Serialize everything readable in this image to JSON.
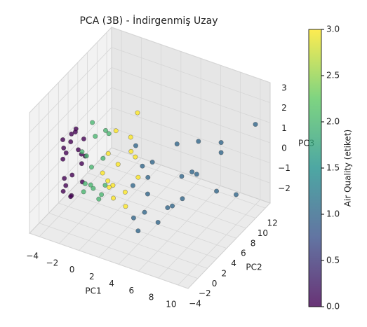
{
  "chart_data": {
    "type": "scatter3d",
    "title": "PCA (3B) - İndirgenmiş Uzay",
    "xlabel": "PC1",
    "ylabel": "PC2",
    "zlabel": "PC3",
    "xlim": [
      -5,
      11
    ],
    "ylim": [
      -4,
      13
    ],
    "zlim": [
      -3,
      3
    ],
    "xticks": [
      {
        "value": -4,
        "label": "−4"
      },
      {
        "value": -2,
        "label": "−2"
      },
      0,
      2,
      4,
      6,
      8,
      10
    ],
    "yticks": [
      {
        "value": -4,
        "label": "−4"
      },
      {
        "value": -2,
        "label": "−2"
      },
      0,
      2,
      4,
      6,
      8,
      10,
      12
    ],
    "zticks": [
      {
        "value": -2,
        "label": "−2"
      },
      {
        "value": -1,
        "label": "−1"
      },
      0,
      1,
      2,
      3
    ],
    "grid": true,
    "cmap": "viridis",
    "colorbar": {
      "label": "Air Quality (etiket)",
      "clim": [
        0,
        3
      ],
      "ticks": [
        {
          "value": 0,
          "label": "0.0"
        },
        {
          "value": 0.5,
          "label": "0.5"
        },
        {
          "value": 1,
          "label": "1.0"
        },
        {
          "value": 1.5,
          "label": "1.5"
        },
        {
          "value": 2,
          "label": "2.0"
        },
        {
          "value": 2.5,
          "label": "2.5"
        },
        {
          "value": 3,
          "label": "3.0"
        }
      ]
    },
    "points": {
      "x": [
        -3.5,
        -3.2,
        -2.8,
        -3.0,
        -2.5,
        -3.3,
        -2.2,
        -2.7,
        -3.1,
        -2.4,
        -2.9,
        -3.4,
        -2.6,
        -2.1,
        -3.0,
        -2.3,
        -2.8,
        -3.2,
        -2.5,
        -2.0,
        -1.2,
        -0.8,
        -1.0,
        -0.5,
        -0.2,
        -1.4,
        -0.6,
        0.0,
        -0.9,
        -0.3,
        0.3,
        -1.1,
        -0.4,
        0.2,
        -0.7,
        1.0,
        1.5,
        2.0,
        0.8,
        2.5,
        1.2,
        3.0,
        1.8,
        2.2,
        0.6,
        2.8,
        1.4,
        3.3,
        2.0,
        1.0,
        3,
        4,
        5,
        3.5,
        6,
        4.5,
        5.5,
        7,
        3.2,
        6.5,
        4.2,
        5,
        7.5,
        3.8,
        6.2,
        8,
        4.8,
        5.8,
        2.8,
        9,
        10,
        10,
        8
      ],
      "y": [
        0,
        1,
        -1,
        2,
        0.5,
        -0.5,
        1.5,
        -1.5,
        0.8,
        -0.8,
        2.5,
        0.3,
        -2,
        1,
        -1.2,
        2,
        0,
        1.8,
        -0.3,
        0.6,
        0,
        1,
        -1,
        2,
        0.5,
        -0.5,
        -1.5,
        1.5,
        2.5,
        -0.8,
        0.8,
        1.2,
        3,
        -2,
        0.2,
        0,
        1,
        -1,
        2,
        0.5,
        -0.5,
        1.5,
        3,
        -1.5,
        1,
        2.5,
        -2,
        0,
        4,
        3.5,
        1,
        2,
        0,
        4,
        3,
        -1,
        5,
        6,
        3,
        1,
        0.5,
        7,
        4,
        -0.5,
        8,
        9,
        2.5,
        5.5,
        2,
        6,
        8,
        12,
        9
      ],
      "z": [
        0.5,
        1,
        -1,
        0,
        1.5,
        -1.5,
        0.8,
        -0.5,
        -2,
        1.2,
        -0.8,
        0.2,
        0.6,
        -1.2,
        1.3,
        -0.2,
        -1.8,
        0.9,
        -0.6,
        0.3,
        0.5,
        1.3,
        -1,
        0,
        -1.6,
        0.8,
        -0.4,
        1.6,
        -2,
        0.3,
        -0.9,
        -1.4,
        1.0,
        -0.2,
        2.2,
        1,
        0.3,
        -0.8,
        1.6,
        -1.5,
        -0.2,
        0.8,
        1.2,
        0,
        -1,
        -0.5,
        0.6,
        1.5,
        2.2,
        -1.8,
        -0.5,
        -1,
        0.5,
        0,
        -1.5,
        -2,
        1,
        -0.5,
        -2.3,
        -1,
        0.8,
        -1.2,
        0.2,
        -1.6,
        0.5,
        0,
        -2.4,
        -1.8,
        1.2,
        -1,
        -1.5,
        1,
        0.5
      ],
      "c": [
        0,
        0,
        0,
        0,
        0,
        0,
        0,
        0,
        0,
        0,
        0,
        0,
        0,
        0,
        0,
        0,
        0,
        0,
        0,
        0,
        2,
        2,
        2,
        2,
        2,
        2,
        2,
        2,
        2,
        2,
        2,
        2,
        2,
        2,
        2,
        3,
        3,
        3,
        3,
        3,
        3,
        3,
        3,
        3,
        3,
        3,
        3,
        3,
        3,
        3,
        1,
        1,
        1,
        1,
        1,
        1,
        1,
        1,
        1,
        1,
        1,
        1,
        1,
        1,
        1,
        1,
        1,
        1,
        1,
        1,
        1,
        1,
        1
      ]
    }
  }
}
